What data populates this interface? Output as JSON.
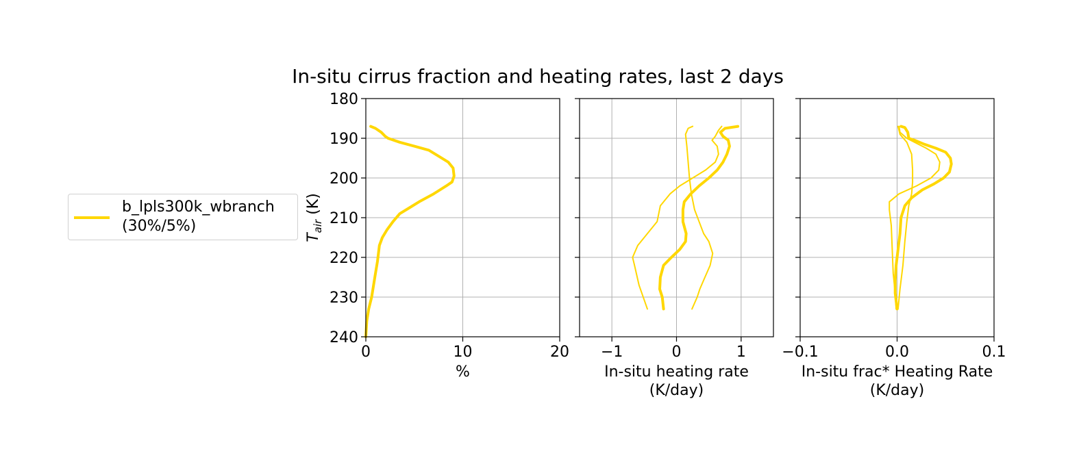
{
  "figure_title": "In-situ cirrus fraction and heating rates, last 2 days",
  "colors": {
    "series": "#FFD700",
    "grid": "#b0b0b0",
    "legend_border": "#d0d0d0"
  },
  "legend": {
    "placement": "left",
    "entries": [
      {
        "line1": "b_lpls300k_wbranch",
        "line2": "(30%/5%)"
      }
    ]
  },
  "chart_data": [
    {
      "type": "line",
      "name": "fraction",
      "xlabel": "%",
      "ylabel_main": "T",
      "ylabel_sub": "air",
      "ylabel_unit": " (K)",
      "xlim": [
        0,
        20
      ],
      "ylim": [
        240,
        180
      ],
      "x_ticks": [
        0,
        10,
        20
      ],
      "x_tick_labels": [
        "0",
        "10",
        "20"
      ],
      "y_ticks": [
        180,
        190,
        200,
        210,
        220,
        230,
        240
      ],
      "y_tick_labels": [
        "180",
        "190",
        "200",
        "210",
        "220",
        "230",
        "240"
      ],
      "show_y_tick_labels": true,
      "grid": true,
      "series": [
        {
          "role": "main",
          "x": [
            0.5,
            1.0,
            1.6,
            2.0,
            2.3,
            3.5,
            5.0,
            6.5,
            7.5,
            8.5,
            9.0,
            9.1,
            8.9,
            8.3,
            7.0,
            5.5,
            4.5,
            3.5,
            2.8,
            2.2,
            1.7,
            1.4,
            1.3,
            1.2,
            1.0,
            0.8,
            0.6,
            0.3,
            0.1,
            0.0
          ],
          "y": [
            187,
            187.5,
            188.5,
            189.5,
            190,
            191,
            192,
            193,
            194.5,
            196,
            197.5,
            199.5,
            201,
            202,
            204,
            206,
            207.5,
            209,
            211,
            213,
            215,
            217,
            219,
            221,
            224,
            227,
            230,
            233,
            236,
            240
          ]
        }
      ]
    },
    {
      "type": "line",
      "name": "heating",
      "xlabel": "In-situ heating rate",
      "xlabel2": "(K/day)",
      "xlim": [
        -1.5,
        1.5
      ],
      "ylim": [
        240,
        180
      ],
      "x_ticks": [
        -1,
        0,
        1
      ],
      "x_tick_labels": [
        "−1",
        "0",
        "1"
      ],
      "y_ticks": [
        180,
        190,
        200,
        210,
        220,
        230,
        240
      ],
      "show_y_tick_labels": false,
      "grid": true,
      "series": [
        {
          "role": "main",
          "x": [
            0.95,
            0.75,
            0.68,
            0.72,
            0.8,
            0.82,
            0.78,
            0.72,
            0.63,
            0.5,
            0.35,
            0.22,
            0.12,
            0.1,
            0.1,
            0.15,
            0.14,
            0.05,
            -0.08,
            -0.2,
            -0.25,
            -0.26,
            -0.22,
            -0.2
          ],
          "y": [
            187,
            187.5,
            188.5,
            189.5,
            190.5,
            192,
            194,
            196,
            198,
            200,
            202,
            204,
            206,
            208,
            211,
            214,
            216,
            218,
            220,
            222,
            225,
            228,
            230,
            233
          ]
        },
        {
          "role": "upper",
          "x": [
            0.7,
            0.65,
            0.6,
            0.55,
            0.63,
            0.65,
            0.6,
            0.45,
            0.25,
            0.05,
            -0.1,
            -0.25,
            -0.3,
            -0.45,
            -0.6,
            -0.68,
            -0.65,
            -0.58,
            -0.45
          ],
          "y": [
            187,
            188,
            189.5,
            190.5,
            192,
            194,
            196,
            198,
            200,
            202,
            204,
            207,
            211,
            214,
            217,
            220,
            222,
            227,
            233
          ]
        },
        {
          "role": "lower",
          "x": [
            0.25,
            0.18,
            0.14,
            0.16,
            0.18,
            0.2,
            0.23,
            0.28,
            0.35,
            0.42,
            0.5,
            0.56,
            0.52,
            0.44,
            0.36,
            0.32,
            0.24
          ],
          "y": [
            187,
            187.5,
            189,
            192,
            196,
            200,
            204,
            208,
            211,
            214,
            216,
            219,
            222,
            225,
            228,
            230,
            233
          ]
        }
      ]
    },
    {
      "type": "line",
      "name": "frac_heating",
      "xlabel": "In-situ frac* Heating Rate",
      "xlabel2": "(K/day)",
      "xlim": [
        -0.1,
        0.1
      ],
      "ylim": [
        240,
        180
      ],
      "x_ticks": [
        -0.1,
        0.0,
        0.1
      ],
      "x_tick_labels": [
        "−0.1",
        "0.0",
        "0.1"
      ],
      "y_ticks": [
        180,
        190,
        200,
        210,
        220,
        230,
        240
      ],
      "show_y_tick_labels": false,
      "grid": true,
      "series": [
        {
          "role": "main",
          "x": [
            0.004,
            0.008,
            0.011,
            0.012,
            0.018,
            0.028,
            0.04,
            0.05,
            0.055,
            0.056,
            0.054,
            0.048,
            0.038,
            0.026,
            0.015,
            0.008,
            0.004,
            0.003,
            0.001,
            -0.001,
            -0.002,
            -0.002,
            -0.001,
            0.0
          ],
          "y": [
            187,
            187.3,
            188.5,
            190,
            190.5,
            191.5,
            192.5,
            193.5,
            195,
            196.5,
            198.5,
            200,
            201.5,
            203,
            205,
            207,
            210,
            214,
            218,
            222,
            226,
            229,
            231,
            233
          ]
        },
        {
          "role": "upper",
          "x": [
            0.002,
            0.003,
            0.01,
            0.018,
            0.03,
            0.04,
            0.044,
            0.043,
            0.035,
            0.02,
            0.002,
            -0.008,
            -0.008,
            -0.006,
            -0.005,
            -0.004,
            -0.002,
            -0.001
          ],
          "y": [
            187,
            188.5,
            190,
            191,
            192.5,
            194,
            196,
            198,
            200,
            202,
            204,
            206,
            208,
            212,
            218,
            224,
            229,
            233
          ]
        },
        {
          "role": "lower",
          "x": [
            0.001,
            0.003,
            0.01,
            0.015,
            0.016,
            0.016,
            0.015,
            0.012,
            0.01,
            0.008,
            0.006,
            0.003,
            0.001
          ],
          "y": [
            187,
            189,
            191,
            194,
            198,
            201,
            204,
            207,
            211,
            216,
            222,
            228,
            233
          ]
        }
      ]
    }
  ]
}
